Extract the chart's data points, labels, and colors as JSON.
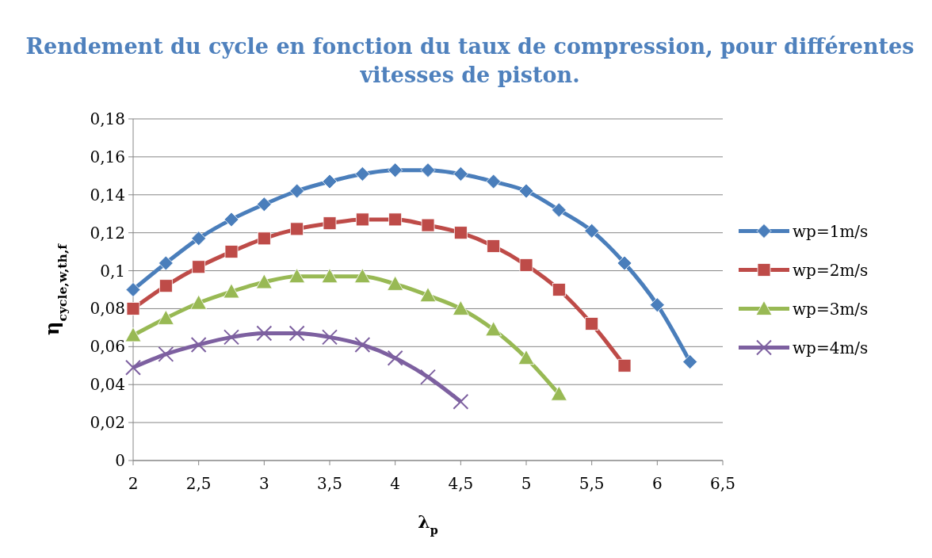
{
  "chart_data": {
    "type": "line",
    "title": "Rendement du cycle en fonction du taux de compression, pour différentes vitesses de piston.",
    "xlabel": "λ$_{p}$",
    "ylabel": "η$_{cycle,w,th,f}$",
    "xlim": [
      2,
      6.5
    ],
    "xticks": [
      2,
      {
        "value": 2.5,
        "label": "2,5"
      },
      3,
      {
        "value": 3.5,
        "label": "3,5"
      },
      4,
      {
        "value": 4.5,
        "label": "4,5"
      },
      5,
      {
        "value": 5.5,
        "label": "5,5"
      },
      6,
      {
        "value": 6.5,
        "label": "6,5"
      }
    ],
    "ylim": [
      0,
      0.18
    ],
    "yticks": [
      0,
      {
        "value": 0.02,
        "label": "0,02"
      },
      {
        "value": 0.04,
        "label": "0,04"
      },
      {
        "value": 0.06,
        "label": "0,06"
      },
      {
        "value": 0.08,
        "label": "0,08"
      },
      {
        "value": 0.1,
        "label": "0,1"
      },
      {
        "value": 0.12,
        "label": "0,12"
      },
      {
        "value": 0.14,
        "label": "0,14"
      },
      {
        "value": 0.16,
        "label": "0,16"
      },
      {
        "value": 0.18,
        "label": "0,18"
      }
    ],
    "grid": "y",
    "legend": "right",
    "series": [
      {
        "name": "wp=1m/s",
        "color": "#4a7ebb",
        "marker": "diamond",
        "x": [
          2,
          2.25,
          2.5,
          2.75,
          3,
          3.25,
          3.5,
          3.75,
          4,
          4.25,
          4.5,
          4.75,
          5,
          5.25,
          5.5,
          5.75,
          6,
          6.25
        ],
        "values": [
          0.09,
          0.104,
          0.117,
          0.127,
          0.135,
          0.142,
          0.147,
          0.151,
          0.153,
          0.153,
          0.151,
          0.147,
          0.142,
          0.132,
          0.121,
          0.104,
          0.082,
          0.052
        ]
      },
      {
        "name": "wp=2m/s",
        "color": "#be4b48",
        "marker": "square",
        "x": [
          2,
          2.25,
          2.5,
          2.75,
          3,
          3.25,
          3.5,
          3.75,
          4,
          4.25,
          4.5,
          4.75,
          5,
          5.25,
          5.5,
          5.75
        ],
        "values": [
          0.08,
          0.092,
          0.102,
          0.11,
          0.117,
          0.122,
          0.125,
          0.127,
          0.127,
          0.124,
          0.12,
          0.113,
          0.103,
          0.09,
          0.072,
          0.05
        ]
      },
      {
        "name": "wp=3m/s",
        "color": "#98b954",
        "marker": "triangle",
        "x": [
          2,
          2.25,
          2.5,
          2.75,
          3,
          3.25,
          3.5,
          3.75,
          4,
          4.25,
          4.5,
          4.75,
          5,
          5.25
        ],
        "values": [
          0.066,
          0.075,
          0.083,
          0.089,
          0.094,
          0.097,
          0.097,
          0.097,
          0.093,
          0.087,
          0.08,
          0.069,
          0.054,
          0.035
        ]
      },
      {
        "name": "wp=4m/s",
        "color": "#7d60a0",
        "marker": "cross",
        "x": [
          2,
          2.25,
          2.5,
          2.75,
          3,
          3.25,
          3.5,
          3.75,
          4,
          4.25,
          4.5
        ],
        "values": [
          0.049,
          0.056,
          0.061,
          0.065,
          0.067,
          0.067,
          0.065,
          0.061,
          0.054,
          0.044,
          0.031
        ]
      }
    ]
  }
}
